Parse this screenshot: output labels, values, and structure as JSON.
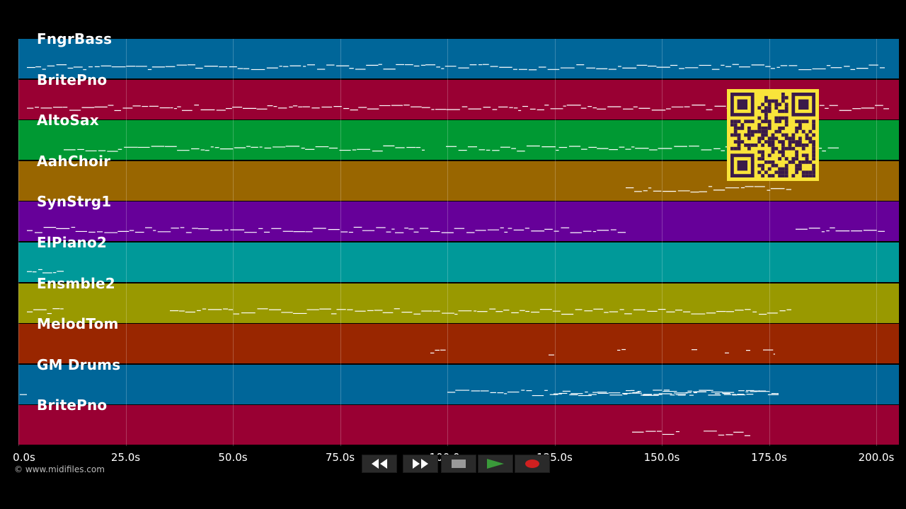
{
  "tracks": [
    {
      "name": "FngrBass",
      "color": "#006699"
    },
    {
      "name": "BritePno",
      "color": "#990033"
    },
    {
      "name": "AltoSax",
      "color": "#009933"
    },
    {
      "name": "AahChoir",
      "color": "#996600"
    },
    {
      "name": "SynStrg1",
      "color": "#660099"
    },
    {
      "name": "ElPiano2",
      "color": "#009999"
    },
    {
      "name": "Ensmble2",
      "color": "#999900"
    },
    {
      "name": "MelodTom",
      "color": "#992600"
    },
    {
      "name": "GM Drums",
      "color": "#006699"
    },
    {
      "name": "BritePno",
      "color": "#990033"
    }
  ],
  "timeline": {
    "ticks": [
      "0.0s",
      "25.0s",
      "50.0s",
      "75.0s",
      "100.0s",
      "125.0s",
      "150.0s",
      "175.0s",
      "200.0s"
    ]
  },
  "copyright": "© www.midifiles.com",
  "controls": [
    {
      "name": "rewind-icon"
    },
    {
      "name": "fast-forward-icon"
    },
    {
      "name": "stop-icon"
    },
    {
      "name": "play-icon"
    },
    {
      "name": "record-icon"
    }
  ],
  "colors": {
    "background": "#000000",
    "qr": "#f9e43a",
    "qr_dark": "#3a1a4a",
    "play": "#3a9a3a",
    "record": "#d02020"
  }
}
